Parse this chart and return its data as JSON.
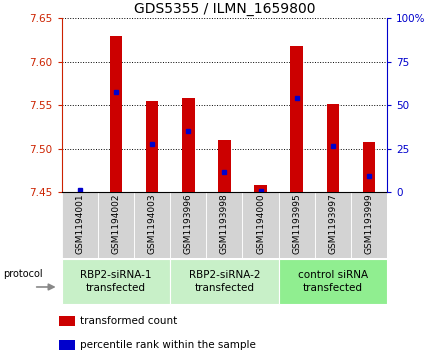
{
  "title": "GDS5355 / ILMN_1659800",
  "samples": [
    "GSM1194001",
    "GSM1194002",
    "GSM1194003",
    "GSM1193996",
    "GSM1193998",
    "GSM1194000",
    "GSM1193995",
    "GSM1193997",
    "GSM1193999"
  ],
  "red_values": [
    7.451,
    7.63,
    7.555,
    7.558,
    7.51,
    7.458,
    7.618,
    7.552,
    7.508
  ],
  "blue_values": [
    7.453,
    7.565,
    7.505,
    7.52,
    7.473,
    7.452,
    7.558,
    7.503,
    7.469
  ],
  "y_min": 7.45,
  "y_max": 7.65,
  "y_ticks": [
    7.45,
    7.5,
    7.55,
    7.6,
    7.65
  ],
  "y2_ticks": [
    0,
    25,
    50,
    75,
    100
  ],
  "group_colors": [
    "#c8f0c8",
    "#c8f0c8",
    "#90ee90"
  ],
  "group_labels": [
    "RBP2-siRNA-1\ntransfected",
    "RBP2-siRNA-2\ntransfected",
    "control siRNA\ntransfected"
  ],
  "group_ranges": [
    [
      0,
      2
    ],
    [
      3,
      5
    ],
    [
      6,
      8
    ]
  ],
  "bar_color": "#cc0000",
  "marker_color": "#0000cc",
  "bar_width": 0.35,
  "base_value": 7.45,
  "bg_color": "#d3d3d3",
  "left_axis_color": "#cc2200",
  "right_axis_color": "#0000cc",
  "sample_label_fontsize": 6.5,
  "group_label_fontsize": 7.5,
  "legend_fontsize": 7.5,
  "title_fontsize": 10
}
